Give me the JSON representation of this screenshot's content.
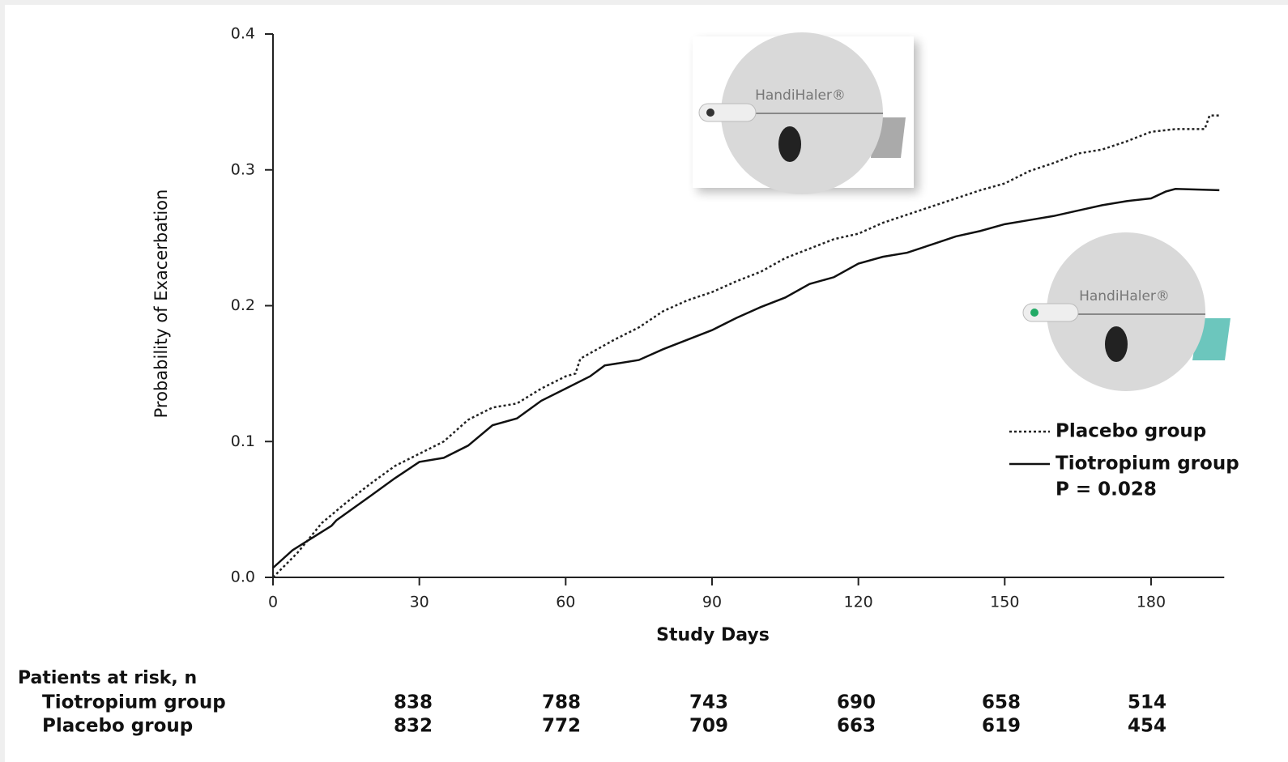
{
  "chart_data": {
    "type": "line",
    "xlabel": "Study Days",
    "ylabel": "Probability of Exacerbation",
    "xlim": [
      0,
      195
    ],
    "ylim": [
      0,
      0.4
    ],
    "xticks": [
      0,
      30,
      60,
      90,
      120,
      150,
      180
    ],
    "yticks": [
      {
        "value": 0,
        "label": "0.0"
      },
      {
        "value": 0.1,
        "label": "0.1"
      },
      {
        "value": 0.2,
        "label": "0.2"
      },
      {
        "value": 0.3,
        "label": "0.3"
      },
      {
        "value": 0.4,
        "label": "0.4"
      }
    ],
    "series": [
      {
        "name": "Placebo group",
        "color": "#222222",
        "dash": "dotted",
        "x": [
          0,
          5,
          10,
          15,
          20,
          25,
          30,
          35,
          40,
          45,
          50,
          55,
          60,
          62,
          63,
          65,
          70,
          75,
          80,
          85,
          90,
          95,
          100,
          105,
          110,
          115,
          120,
          125,
          130,
          135,
          140,
          145,
          150,
          155,
          160,
          165,
          170,
          175,
          180,
          185,
          191,
          192,
          194
        ],
        "values": [
          0.0,
          0.018,
          0.04,
          0.055,
          0.069,
          0.082,
          0.091,
          0.1,
          0.116,
          0.125,
          0.128,
          0.139,
          0.148,
          0.15,
          0.161,
          0.165,
          0.175,
          0.184,
          0.196,
          0.204,
          0.21,
          0.218,
          0.225,
          0.235,
          0.242,
          0.249,
          0.253,
          0.261,
          0.267,
          0.273,
          0.279,
          0.285,
          0.29,
          0.299,
          0.305,
          0.312,
          0.315,
          0.321,
          0.328,
          0.33,
          0.33,
          0.34,
          0.34
        ]
      },
      {
        "name": "Tiotropium group",
        "color": "#111111",
        "dash": "solid",
        "x": [
          0,
          4,
          12,
          13,
          20,
          25,
          30,
          35,
          40,
          45,
          50,
          55,
          60,
          65,
          68,
          75,
          80,
          85,
          90,
          95,
          100,
          105,
          110,
          115,
          120,
          125,
          130,
          135,
          140,
          145,
          150,
          155,
          160,
          165,
          170,
          175,
          180,
          183,
          185,
          194
        ],
        "values": [
          0.007,
          0.02,
          0.038,
          0.042,
          0.06,
          0.073,
          0.085,
          0.088,
          0.097,
          0.112,
          0.117,
          0.13,
          0.139,
          0.148,
          0.156,
          0.16,
          0.168,
          0.175,
          0.182,
          0.191,
          0.199,
          0.206,
          0.216,
          0.221,
          0.231,
          0.236,
          0.239,
          0.245,
          0.251,
          0.255,
          0.26,
          0.263,
          0.266,
          0.27,
          0.274,
          0.277,
          0.279,
          0.284,
          0.286,
          0.285
        ]
      }
    ],
    "annotation": "P = 0.028",
    "inhaler_labels": [
      "HandiHaler®",
      "HandiHaler®"
    ],
    "risk_table": {
      "title": "Patients at risk, n",
      "rows": [
        {
          "name": "Tiotropium group",
          "values": [
            "838",
            "788",
            "743",
            "690",
            "658",
            "514"
          ]
        },
        {
          "name": "Placebo group",
          "values": [
            "832",
            "772",
            "709",
            "663",
            "619",
            "454"
          ]
        }
      ]
    }
  }
}
